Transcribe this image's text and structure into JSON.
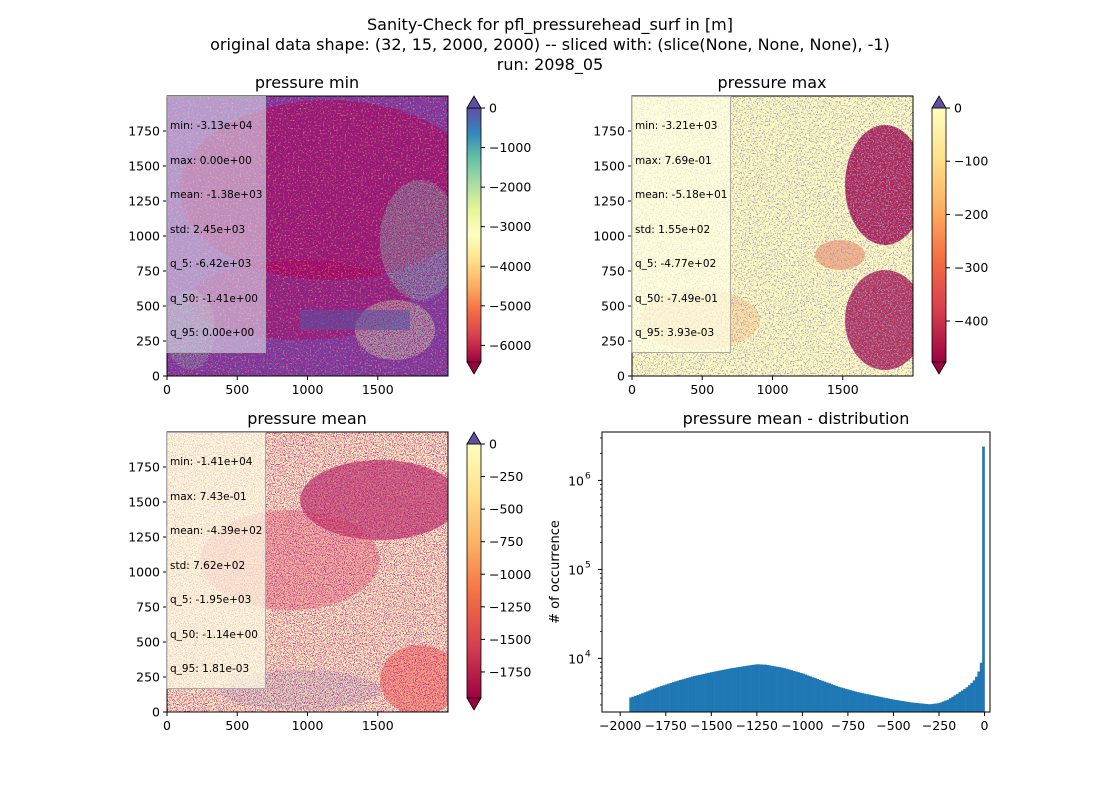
{
  "figure": {
    "suptitle_lines": [
      "Sanity-Check for pfl_pressurehead_surf in [m]",
      "original data shape: (32, 15, 2000, 2000) -- sliced with: (slice(None, None, None), -1)",
      "run: 2098_05"
    ]
  },
  "panels": [
    {
      "title": "pressure min",
      "stats": [
        "min: -3.13e+04",
        "max: 0.00e+00",
        "mean: -1.38e+03",
        "std: 2.45e+03",
        "q_5: -6.42e+03",
        "q_50: -1.41e+00",
        "q_95: 0.00e+00"
      ],
      "colorbar_ticks": [
        0,
        -1000,
        -2000,
        -3000,
        -4000,
        -5000,
        -6000
      ],
      "colorbar_range": [
        -6420,
        0
      ],
      "x_ticks": [
        0,
        500,
        1000,
        1500
      ],
      "y_ticks": [
        0,
        250,
        500,
        750,
        1000,
        1250,
        1500,
        1750
      ]
    },
    {
      "title": "pressure max",
      "stats": [
        "min: -3.21e+03",
        "max: 7.69e-01",
        "mean: -5.18e+01",
        "std: 1.55e+02",
        "q_5: -4.77e+02",
        "q_50: -7.49e-01",
        "q_95: 3.93e-03"
      ],
      "colorbar_ticks": [
        0,
        -100,
        -200,
        -300,
        -400
      ],
      "colorbar_range": [
        -477,
        0
      ],
      "x_ticks": [
        0,
        500,
        1000,
        1500
      ],
      "y_ticks": [
        0,
        250,
        500,
        750,
        1000,
        1250,
        1500,
        1750
      ]
    },
    {
      "title": "pressure mean",
      "stats": [
        "min: -1.41e+04",
        "max: 7.43e-01",
        "mean: -4.39e+02",
        "std: 7.62e+02",
        "q_5: -1.95e+03",
        "q_50: -1.14e+00",
        "q_95: 1.81e-03"
      ],
      "colorbar_ticks": [
        0,
        -250,
        -500,
        -750,
        -1000,
        -1250,
        -1500,
        -1750
      ],
      "colorbar_range": [
        -1950,
        0
      ],
      "x_ticks": [
        0,
        500,
        1000,
        1500
      ],
      "y_ticks": [
        0,
        250,
        500,
        750,
        1000,
        1250,
        1500,
        1750
      ]
    }
  ],
  "chart_data": {
    "type": "bar",
    "title": "pressure mean - distribution",
    "xlabel": "",
    "ylabel": "# of occurrence",
    "y_scale": "log",
    "xlim": [
      -2100,
      30
    ],
    "ylim": [
      2500,
      3500000
    ],
    "x_ticks": [
      -2000,
      -1750,
      -1500,
      -1250,
      -1000,
      -750,
      -500,
      -250,
      0
    ],
    "y_ticks": [
      {
        "value": 10000,
        "label_base": "10",
        "label_exp": "4"
      },
      {
        "value": 100000,
        "label_base": "10",
        "label_exp": "5"
      },
      {
        "value": 1000000,
        "label_base": "10",
        "label_exp": "6"
      }
    ],
    "bar_color": "#1f77b4",
    "bin_edges_range": [
      -1950,
      0
    ],
    "bin_width": 13,
    "profile_x": [
      -1950,
      -1900,
      -1800,
      -1700,
      -1600,
      -1500,
      -1400,
      -1300,
      -1250,
      -1200,
      -1100,
      -1000,
      -900,
      -800,
      -700,
      -600,
      -500,
      -400,
      -300,
      -250,
      -200,
      -150,
      -100,
      -80,
      -60,
      -40,
      -25,
      -15,
      -10,
      -5,
      0
    ],
    "profile_y": [
      3600,
      3900,
      4700,
      5500,
      6300,
      7000,
      7700,
      8300,
      8600,
      8500,
      7800,
      6800,
      5700,
      4800,
      4200,
      3800,
      3450,
      3200,
      3050,
      3150,
      3450,
      4000,
      4700,
      5100,
      5600,
      6500,
      7800,
      10000,
      12500,
      17000,
      2400000
    ]
  },
  "colors": {
    "cmap_spectral": [
      "#9e0142",
      "#d53e4f",
      "#f46d43",
      "#fdae61",
      "#fee08b",
      "#ffffbf",
      "#e6f598",
      "#abdda4",
      "#66c2a5",
      "#3288bd",
      "#5e4fa2"
    ]
  }
}
